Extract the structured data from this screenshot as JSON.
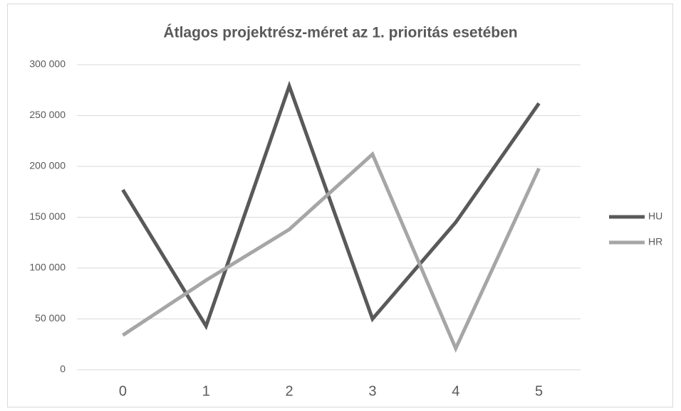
{
  "chart_data": {
    "type": "line",
    "title": "Átlagos projektrész-méret az 1. prioritás esetében",
    "categories": [
      "0",
      "1",
      "2",
      "3",
      "4",
      "5"
    ],
    "series": [
      {
        "name": "HU",
        "color": "#595959",
        "values": [
          177000,
          43000,
          279000,
          50000,
          145000,
          262000
        ]
      },
      {
        "name": "HR",
        "color": "#a6a6a6",
        "values": [
          34000,
          88000,
          138000,
          212000,
          21000,
          198000
        ]
      }
    ],
    "ylim": [
      0,
      300000
    ],
    "yticks": [
      {
        "value": 0,
        "label": "0"
      },
      {
        "value": 50000,
        "label": "50 000"
      },
      {
        "value": 100000,
        "label": "100 000"
      },
      {
        "value": 150000,
        "label": "150 000"
      },
      {
        "value": 200000,
        "label": "200 000"
      },
      {
        "value": 250000,
        "label": "250 000"
      },
      {
        "value": 300000,
        "label": "300 000"
      }
    ],
    "grid": true,
    "legend": "right"
  }
}
